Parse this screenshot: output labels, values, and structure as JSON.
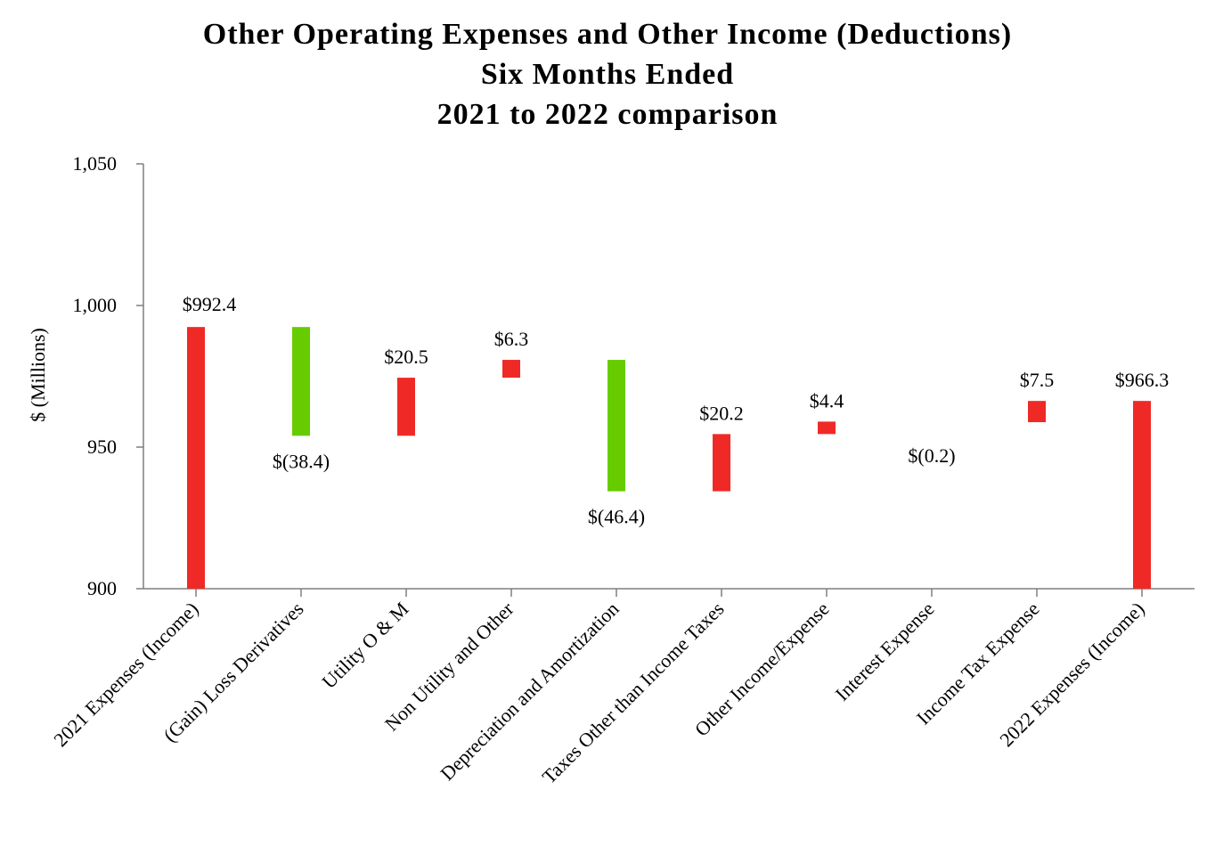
{
  "chart_data": {
    "type": "waterfall",
    "title_lines": [
      "Other Operating Expenses and Other Income (Deductions)",
      "Six Months Ended",
      "2021 to 2022 comparison"
    ],
    "ylabel": "$ (Millions)",
    "xlabel": "",
    "ylim": [
      900,
      1050
    ],
    "yticks": [
      900,
      950,
      1000,
      1050
    ],
    "ytick_labels": [
      "900",
      "950",
      "1,000",
      "1,050"
    ],
    "categories": [
      "2021 Expenses (Income)",
      "(Gain) Loss Derivatives",
      "Utility O & M",
      "Non Utility and Other",
      "Depreciation and Amortization",
      "Taxes Other than Income Taxes",
      "Other Income/Expense",
      "Interest Expense",
      "Income Tax Expense",
      "2022 Expenses (Income)"
    ],
    "bars": [
      {
        "low": 900,
        "high": 992.4,
        "label": "$992.4",
        "kind": "total"
      },
      {
        "low": 954.0,
        "high": 992.4,
        "label": "$(38.4)",
        "kind": "decrease"
      },
      {
        "low": 954.0,
        "high": 974.5,
        "label": "$20.5",
        "kind": "increase"
      },
      {
        "low": 974.5,
        "high": 980.8,
        "label": "$6.3",
        "kind": "increase"
      },
      {
        "low": 934.4,
        "high": 980.8,
        "label": "$(46.4)",
        "kind": "decrease"
      },
      {
        "low": 934.4,
        "high": 954.6,
        "label": "$20.2",
        "kind": "increase"
      },
      {
        "low": 954.6,
        "high": 959.0,
        "label": "$4.4",
        "kind": "increase"
      },
      {
        "low": 958.8,
        "high": 959.0,
        "label": "$(0.2)",
        "kind": "decrease"
      },
      {
        "low": 958.8,
        "high": 966.3,
        "label": "$7.5",
        "kind": "increase"
      },
      {
        "low": 900,
        "high": 966.3,
        "label": "$966.3",
        "kind": "total"
      }
    ],
    "colors": {
      "increase": "#ef2a26",
      "total": "#ef2a26",
      "decrease": "#66cc00",
      "axis": "#7f7f7f"
    },
    "grid": false,
    "legend": "none"
  }
}
